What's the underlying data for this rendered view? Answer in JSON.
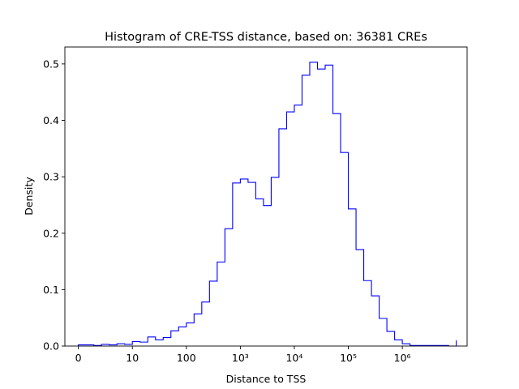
{
  "chart_data": {
    "type": "histogram",
    "title": "Histogram of CRE-TSS distance, based on: 36381 CREs",
    "xlabel": "Distance to TSS",
    "ylabel": "Density",
    "x_scale": "log10(distance+1)",
    "xlim": [
      -0.25,
      7.2
    ],
    "ylim": [
      0,
      0.53
    ],
    "grid": false,
    "line_color": "#0000ff",
    "x_ticks": [
      {
        "value": 0,
        "label": "0"
      },
      {
        "value": 1,
        "label": "10"
      },
      {
        "value": 2,
        "label": "100"
      },
      {
        "value": 3,
        "label": "10³"
      },
      {
        "value": 4,
        "label": "10⁴"
      },
      {
        "value": 5,
        "label": "10⁵"
      },
      {
        "value": 6,
        "label": "10⁶"
      }
    ],
    "y_ticks": [
      {
        "value": 0.0,
        "label": "0.0"
      },
      {
        "value": 0.1,
        "label": "0.1"
      },
      {
        "value": 0.2,
        "label": "0.2"
      },
      {
        "value": 0.3,
        "label": "0.3"
      },
      {
        "value": 0.4,
        "label": "0.4"
      },
      {
        "value": 0.5,
        "label": "0.5"
      }
    ],
    "bin_edges": [
      0.0,
      0.14286,
      0.28571,
      0.42857,
      0.57143,
      0.71429,
      0.85714,
      1.0,
      1.14286,
      1.28571,
      1.42857,
      1.57143,
      1.71429,
      1.85714,
      2.0,
      2.14286,
      2.28571,
      2.42857,
      2.57143,
      2.71429,
      2.85714,
      3.0,
      3.14286,
      3.28571,
      3.42857,
      3.57143,
      3.71429,
      3.85714,
      4.0,
      4.14286,
      4.28571,
      4.42857,
      4.57143,
      4.71429,
      4.85714,
      5.0,
      5.14286,
      5.28571,
      5.42857,
      5.57143,
      5.71429,
      5.85714,
      6.0,
      6.14286,
      6.28571,
      6.42857,
      6.57143,
      6.71429,
      6.85714,
      7.0
    ],
    "densities": [
      0.002,
      0.002,
      0.001,
      0.003,
      0.002,
      0.004,
      0.003,
      0.008,
      0.007,
      0.016,
      0.011,
      0.015,
      0.027,
      0.034,
      0.041,
      0.057,
      0.078,
      0.115,
      0.149,
      0.208,
      0.289,
      0.296,
      0.29,
      0.261,
      0.249,
      0.299,
      0.385,
      0.415,
      0.427,
      0.48,
      0.503,
      0.491,
      0.498,
      0.412,
      0.343,
      0.243,
      0.171,
      0.116,
      0.089,
      0.049,
      0.026,
      0.011,
      0.004,
      0.001,
      0.001,
      0.001,
      0.001,
      0.001,
      0.0,
      0.01
    ]
  }
}
